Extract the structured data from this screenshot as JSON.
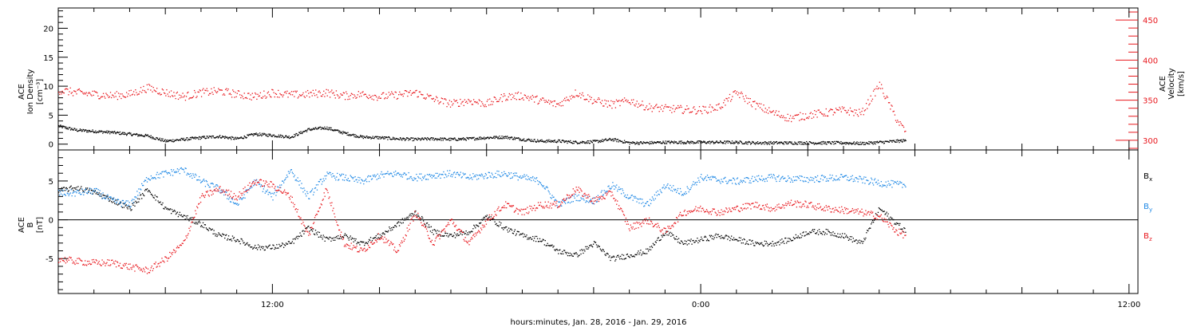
{
  "colors": {
    "axis": "#000000",
    "black": "#000000",
    "blue": "#1e88e5",
    "red": "#e8161c"
  },
  "chart_data": [
    {
      "type": "scatter",
      "panel": "top",
      "ylabel_left": [
        "ACE",
        "Ion Density",
        "[cm⁻³]"
      ],
      "ylabel_right": [
        "ACE",
        "Velocity",
        "[km/s]"
      ],
      "ylim_left": [
        -1,
        23.5
      ],
      "ylim_right": [
        288,
        465
      ],
      "yticks_left": [
        0,
        5,
        10,
        15,
        20
      ],
      "yticks_right": [
        300,
        350,
        400,
        450
      ],
      "x_range_hours": [
        6,
        36.25
      ],
      "data_end_hours": 29.75,
      "series": [
        {
          "name": "",
          "axis": "left",
          "color": "black",
          "points": [
            [
              6,
              3.2
            ],
            [
              6.5,
              2.5
            ],
            [
              7,
              2.3
            ],
            [
              7.5,
              2.1
            ],
            [
              8,
              1.8
            ],
            [
              8.5,
              1.5
            ],
            [
              9,
              0.6
            ],
            [
              9.5,
              0.9
            ],
            [
              10,
              1.2
            ],
            [
              10.5,
              1.4
            ],
            [
              11,
              1.0
            ],
            [
              11.5,
              1.8
            ],
            [
              12,
              1.6
            ],
            [
              12.5,
              1.3
            ],
            [
              13,
              2.6
            ],
            [
              13.5,
              2.9
            ],
            [
              14,
              2.0
            ],
            [
              14.5,
              1.3
            ],
            [
              15,
              1.2
            ],
            [
              15.5,
              1.0
            ],
            [
              16,
              0.9
            ],
            [
              16.5,
              1.0
            ],
            [
              17,
              0.9
            ],
            [
              17.5,
              1.0
            ],
            [
              18,
              1.2
            ],
            [
              18.5,
              1.3
            ],
            [
              19,
              0.9
            ],
            [
              19.5,
              0.6
            ],
            [
              20,
              0.6
            ],
            [
              20.5,
              0.4
            ],
            [
              21,
              0.5
            ],
            [
              21.5,
              0.9
            ],
            [
              22,
              0.3
            ],
            [
              22.5,
              0.3
            ],
            [
              23,
              0.4
            ],
            [
              23.5,
              0.4
            ],
            [
              24,
              0.4
            ],
            [
              24.5,
              0.4
            ],
            [
              25,
              0.4
            ],
            [
              25.5,
              0.3
            ],
            [
              26,
              0.3
            ],
            [
              26.5,
              0.3
            ],
            [
              27,
              0.3
            ],
            [
              27.5,
              0.3
            ],
            [
              28,
              0.3
            ],
            [
              28.5,
              0.2
            ],
            [
              29,
              0.4
            ],
            [
              29.5,
              0.6
            ],
            [
              29.75,
              0.7
            ]
          ]
        },
        {
          "name": "",
          "axis": "right",
          "color": "red",
          "points": [
            [
              6,
              363
            ],
            [
              6.5,
              360
            ],
            [
              7,
              358
            ],
            [
              7.5,
              356
            ],
            [
              8,
              358
            ],
            [
              8.5,
              366
            ],
            [
              9,
              360
            ],
            [
              9.5,
              355
            ],
            [
              10,
              360
            ],
            [
              10.5,
              362
            ],
            [
              11,
              358
            ],
            [
              11.5,
              355
            ],
            [
              12,
              360
            ],
            [
              12.5,
              357
            ],
            [
              13,
              358
            ],
            [
              13.5,
              360
            ],
            [
              14,
              356
            ],
            [
              14.5,
              358
            ],
            [
              15,
              355
            ],
            [
              15.5,
              357
            ],
            [
              16,
              360
            ],
            [
              16.5,
              352
            ],
            [
              17,
              346
            ],
            [
              17.5,
              350
            ],
            [
              18,
              346
            ],
            [
              18.5,
              355
            ],
            [
              19,
              356
            ],
            [
              19.5,
              350
            ],
            [
              20,
              345
            ],
            [
              20.5,
              360
            ],
            [
              21,
              350
            ],
            [
              21.5,
              345
            ],
            [
              22,
              350
            ],
            [
              22.5,
              342
            ],
            [
              23,
              340
            ],
            [
              23.5,
              339
            ],
            [
              24,
              338
            ],
            [
              24.5,
              342
            ],
            [
              25,
              360
            ],
            [
              25.5,
              345
            ],
            [
              26,
              335
            ],
            [
              26.5,
              328
            ],
            [
              27,
              332
            ],
            [
              27.5,
              335
            ],
            [
              28,
              338
            ],
            [
              28.5,
              334
            ],
            [
              29,
              370
            ],
            [
              29.5,
              325
            ],
            [
              29.75,
              310
            ]
          ]
        }
      ]
    },
    {
      "type": "scatter",
      "panel": "bottom",
      "ylabel_left": [
        "ACE",
        "B",
        "[nT]"
      ],
      "ylim": [
        -9.5,
        9
      ],
      "yticks": [
        -5,
        0,
        5
      ],
      "zero_line": true,
      "x_range_hours": [
        6,
        36.25
      ],
      "data_end_hours": 29.75,
      "legend": [
        "Bx",
        "By",
        "Bz"
      ],
      "series": [
        {
          "name": "Bx",
          "color": "black",
          "points": [
            [
              6,
              3.8
            ],
            [
              6.5,
              4.2
            ],
            [
              7,
              3.6
            ],
            [
              7.5,
              2.6
            ],
            [
              8,
              1.5
            ],
            [
              8.5,
              4.0
            ],
            [
              9,
              1.5
            ],
            [
              9.5,
              0.5
            ],
            [
              10,
              -0.5
            ],
            [
              10.5,
              -2.0
            ],
            [
              11,
              -2.5
            ],
            [
              11.5,
              -3.5
            ],
            [
              12,
              -3.5
            ],
            [
              12.5,
              -3.0
            ],
            [
              13,
              -1.0
            ],
            [
              13.5,
              -2.5
            ],
            [
              14,
              -2.0
            ],
            [
              14.5,
              -3.0
            ],
            [
              15,
              -2.0
            ],
            [
              15.5,
              -0.5
            ],
            [
              16,
              1.0
            ],
            [
              16.5,
              -1.5
            ],
            [
              17,
              -2.0
            ],
            [
              17.5,
              -1.5
            ],
            [
              18,
              0.5
            ],
            [
              18.5,
              -1.0
            ],
            [
              19,
              -2.0
            ],
            [
              19.5,
              -2.5
            ],
            [
              20,
              -4.0
            ],
            [
              20.5,
              -4.5
            ],
            [
              21,
              -3.0
            ],
            [
              21.5,
              -5.0
            ],
            [
              22,
              -4.5
            ],
            [
              22.5,
              -4.0
            ],
            [
              23,
              -1.5
            ],
            [
              23.5,
              -3.0
            ],
            [
              24,
              -2.5
            ],
            [
              24.5,
              -2.0
            ],
            [
              25,
              -2.5
            ],
            [
              25.5,
              -3.0
            ],
            [
              26,
              -3.0
            ],
            [
              26.5,
              -2.5
            ],
            [
              27,
              -1.5
            ],
            [
              27.5,
              -1.5
            ],
            [
              28,
              -2.0
            ],
            [
              28.5,
              -3.0
            ],
            [
              29,
              1.5
            ],
            [
              29.5,
              -0.5
            ],
            [
              29.75,
              -1.5
            ]
          ]
        },
        {
          "name": "By",
          "color": "blue",
          "points": [
            [
              6,
              3.5
            ],
            [
              6.5,
              3.5
            ],
            [
              7,
              3.8
            ],
            [
              7.5,
              2.5
            ],
            [
              8,
              2.0
            ],
            [
              8.5,
              5.5
            ],
            [
              9,
              6.0
            ],
            [
              9.5,
              6.5
            ],
            [
              10,
              5.0
            ],
            [
              10.5,
              4.0
            ],
            [
              11,
              2.0
            ],
            [
              11.5,
              5.0
            ],
            [
              12,
              3.0
            ],
            [
              12.5,
              6.5
            ],
            [
              13,
              3.0
            ],
            [
              13.5,
              5.8
            ],
            [
              14,
              5.5
            ],
            [
              14.5,
              5.0
            ],
            [
              15,
              5.8
            ],
            [
              15.5,
              6.0
            ],
            [
              16,
              5.5
            ],
            [
              16.5,
              5.8
            ],
            [
              17,
              6.0
            ],
            [
              17.5,
              5.5
            ],
            [
              18,
              5.8
            ],
            [
              18.5,
              6.0
            ],
            [
              19,
              5.5
            ],
            [
              19.5,
              5.0
            ],
            [
              20,
              2.0
            ],
            [
              20.5,
              3.0
            ],
            [
              21,
              2.5
            ],
            [
              21.5,
              4.5
            ],
            [
              22,
              3.0
            ],
            [
              22.5,
              2.0
            ],
            [
              23,
              4.5
            ],
            [
              23.5,
              3.5
            ],
            [
              24,
              5.5
            ],
            [
              24.5,
              5.2
            ],
            [
              25,
              5.0
            ],
            [
              25.5,
              5.3
            ],
            [
              26,
              5.5
            ],
            [
              26.5,
              5.3
            ],
            [
              27,
              5.3
            ],
            [
              27.5,
              5.4
            ],
            [
              28,
              5.5
            ],
            [
              28.5,
              5.2
            ],
            [
              29,
              4.8
            ],
            [
              29.5,
              4.6
            ],
            [
              29.75,
              4.5
            ]
          ]
        },
        {
          "name": "Bz",
          "color": "red",
          "points": [
            [
              6,
              -5.0
            ],
            [
              6.5,
              -5.3
            ],
            [
              7,
              -5.5
            ],
            [
              7.5,
              -5.5
            ],
            [
              8,
              -6.0
            ],
            [
              8.5,
              -6.5
            ],
            [
              9,
              -5.0
            ],
            [
              9.5,
              -3.0
            ],
            [
              10,
              3.0
            ],
            [
              10.5,
              4.0
            ],
            [
              11,
              3.0
            ],
            [
              11.5,
              5.0
            ],
            [
              12,
              4.5
            ],
            [
              12.5,
              3.0
            ],
            [
              13,
              -2.0
            ],
            [
              13.5,
              4.0
            ],
            [
              14,
              -3.0
            ],
            [
              14.5,
              -4.0
            ],
            [
              15,
              -2.0
            ],
            [
              15.5,
              -4.0
            ],
            [
              16,
              1.0
            ],
            [
              16.5,
              -3.0
            ],
            [
              17,
              0.0
            ],
            [
              17.5,
              -3.0
            ],
            [
              18,
              0.0
            ],
            [
              18.5,
              2.0
            ],
            [
              19,
              1.0
            ],
            [
              19.5,
              2.0
            ],
            [
              20,
              2.0
            ],
            [
              20.5,
              4.0
            ],
            [
              21,
              2.5
            ],
            [
              21.5,
              3.5
            ],
            [
              22,
              -1.0
            ],
            [
              22.5,
              0.0
            ],
            [
              23,
              -1.5
            ],
            [
              23.5,
              1.0
            ],
            [
              24,
              1.5
            ],
            [
              24.5,
              1.0
            ],
            [
              25,
              1.5
            ],
            [
              25.5,
              2.0
            ],
            [
              26,
              1.5
            ],
            [
              26.5,
              2.2
            ],
            [
              27,
              2.0
            ],
            [
              27.5,
              1.5
            ],
            [
              28,
              1.3
            ],
            [
              28.5,
              1.0
            ],
            [
              29,
              0.5
            ],
            [
              29.5,
              -1.5
            ],
            [
              29.75,
              -2.0
            ]
          ]
        }
      ]
    }
  ],
  "xaxis": {
    "ticks": [
      {
        "hour": 12,
        "label": "12:00"
      },
      {
        "hour": 24,
        "label": "0:00"
      },
      {
        "hour": 36,
        "label": "12:00"
      }
    ],
    "xlabel": "hours:minutes, Jan. 28, 2016 - Jan. 29, 2016"
  },
  "legend_labels": {
    "bx": "B",
    "bx_sub": "x",
    "by": "B",
    "by_sub": "y",
    "bz": "B",
    "bz_sub": "z"
  }
}
